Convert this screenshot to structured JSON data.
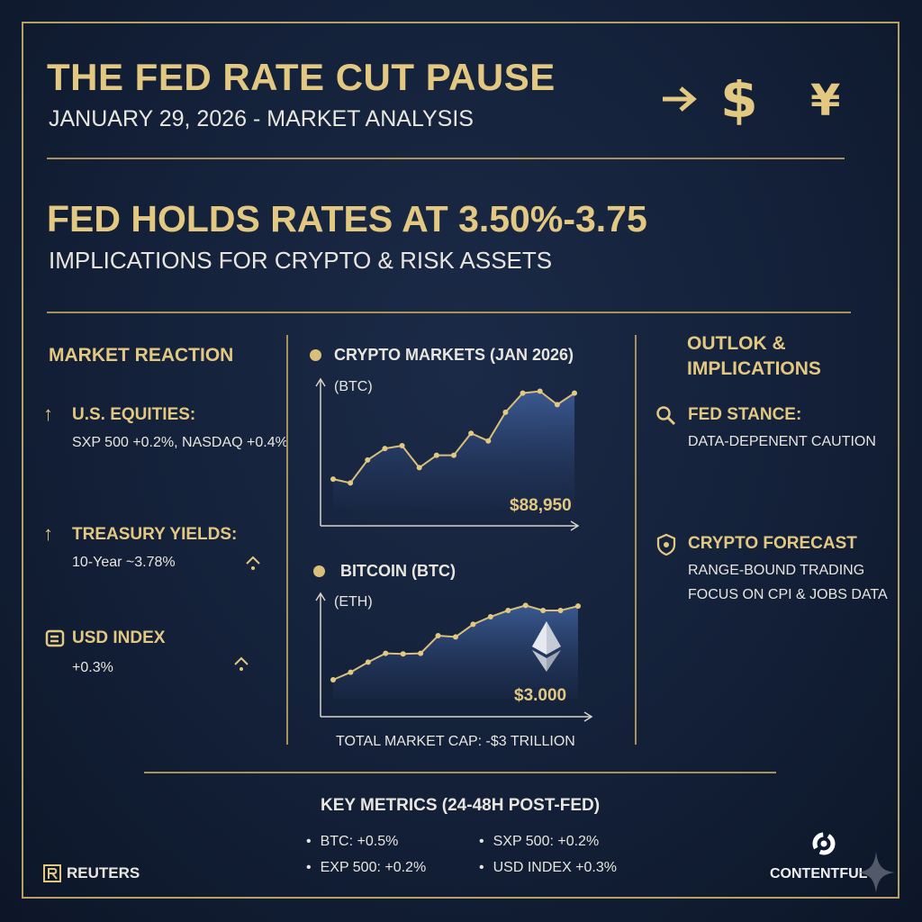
{
  "header": {
    "title": "THE FED RATE CUT PAUSE",
    "subtitle": "JANUARY 29, 2026 - MARKET ANALYSIS",
    "currency_icons": [
      "arrow-right-icon",
      "dollar-icon",
      "yen-icon"
    ]
  },
  "headline": {
    "title": "FED HOLDS RATES AT 3.50%-3.75",
    "subtitle": "IMPLICATIONS FOR CRYPTO & RISK ASSETS"
  },
  "market_reaction": {
    "title": "MARKET REACTION",
    "items": [
      {
        "label": "U.S. EQUITIES:",
        "text": "SXP 500 +0.2%, NASDAQ +0.4%"
      },
      {
        "label": "TREASURY YIELDS:",
        "text": "10-Year ~3.78%"
      },
      {
        "label": "USD INDEX",
        "text": "+0.3%"
      }
    ]
  },
  "charts": {
    "top": {
      "title": "CRYPTO MARKETS (JAN 2026)",
      "axis_label": "(BTC)",
      "value": "$88,950"
    },
    "bottom": {
      "title": "BITCOIN (BTC)",
      "axis_label": "(ETH)",
      "value": "$3.000"
    },
    "footer": "TOTAL MARKET CAP: -$3 TRILLION"
  },
  "chart_data": [
    {
      "type": "area",
      "title": "CRYPTO MARKETS (JAN 2026)",
      "ylabel": "(BTC)",
      "x": [
        0,
        1,
        2,
        3,
        4,
        5,
        6,
        7,
        8,
        9,
        10,
        11,
        12,
        13,
        14
      ],
      "values": [
        30,
        26,
        50,
        62,
        65,
        42,
        55,
        55,
        78,
        70,
        100,
        120,
        122,
        108,
        120
      ],
      "ylim": [
        0,
        130
      ],
      "annotation": "$88,950"
    },
    {
      "type": "area",
      "title": "BITCOIN (BTC)",
      "ylabel": "(ETH)",
      "x": [
        0,
        1,
        2,
        3,
        4,
        5,
        6,
        7,
        8,
        9,
        10,
        11,
        12,
        13,
        14
      ],
      "values": [
        30,
        42,
        58,
        72,
        71,
        72,
        100,
        98,
        118,
        130,
        140,
        148,
        140,
        140,
        147
      ],
      "ylim": [
        0,
        160
      ],
      "annotation": "$3.000"
    }
  ],
  "outlook": {
    "title_line1": "OUTLOK &",
    "title_line2": "IMPLICATIONS",
    "items": [
      {
        "label": "FED STANCE:",
        "text": "DATA-DEPENENT CAUTION"
      },
      {
        "label": "CRYPTO FORECAST",
        "text": "RANGE-BOUND TRADING",
        "text2": "FOCUS ON CPI & JOBS DATA"
      }
    ]
  },
  "key_metrics": {
    "title": "KEY METRICS (24-48H POST-FED)",
    "items": [
      "BTC: +0.5%",
      "SXP 500: +0.2%",
      "EXP 500: +0.2%",
      "USD INDEX +0.3%"
    ]
  },
  "footer": {
    "left_brand": "REUTERS",
    "right_brand": "CONTENTFUL"
  },
  "colors": {
    "gold": "#e3c882",
    "navy": "#132038",
    "line": "#a99257"
  }
}
